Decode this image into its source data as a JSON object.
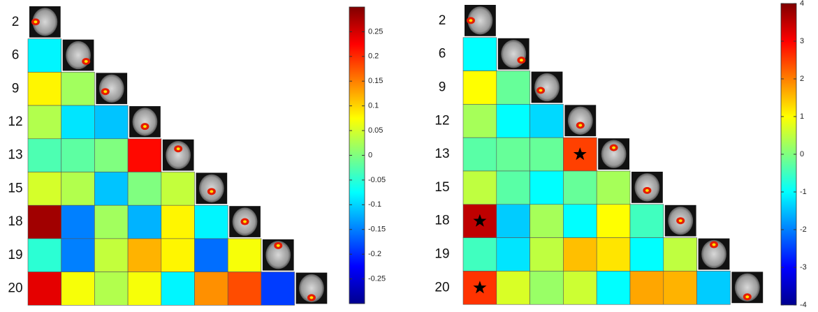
{
  "chart_data": [
    {
      "type": "heatmap",
      "labels": [
        "2",
        "6",
        "9",
        "12",
        "13",
        "15",
        "18",
        "19",
        "20"
      ],
      "values": [
        [],
        [
          -0.08
        ],
        [
          0.08,
          0.02
        ],
        [
          0.03,
          -0.09,
          -0.11
        ],
        [
          -0.03,
          -0.02,
          0.0,
          0.22
        ],
        [
          0.05,
          0.03,
          -0.11,
          0.0,
          0.04
        ],
        [
          0.28,
          -0.15,
          0.02,
          -0.12,
          0.08,
          -0.08
        ],
        [
          -0.05,
          -0.15,
          0.04,
          0.12,
          0.08,
          -0.16,
          0.07
        ],
        [
          0.24,
          0.07,
          0.03,
          0.07,
          -0.08,
          0.14,
          0.18,
          -0.19
        ]
      ],
      "zlim": [
        -0.3,
        0.3
      ],
      "zticks": [
        0.25,
        0.2,
        0.15,
        0.1,
        0.05,
        0,
        -0.05,
        -0.1,
        -0.15,
        -0.2,
        -0.25
      ],
      "colormap": "jet",
      "stars": []
    },
    {
      "type": "heatmap",
      "labels": [
        "2",
        "6",
        "9",
        "12",
        "13",
        "15",
        "18",
        "19",
        "20"
      ],
      "values": [
        [],
        [
          -1.0
        ],
        [
          1.0,
          -0.2
        ],
        [
          0.3,
          -1.0,
          -1.3
        ],
        [
          -0.3,
          -0.2,
          -0.2,
          2.5
        ],
        [
          0.5,
          -0.3,
          -1.0,
          -0.2,
          0.3
        ],
        [
          3.5,
          -1.4,
          0.3,
          -1.0,
          1.0,
          -0.5
        ],
        [
          -0.5,
          -1.2,
          0.5,
          1.5,
          1.2,
          -1.0,
          0.5
        ],
        [
          2.6,
          0.7,
          0.2,
          0.6,
          -1.0,
          1.7,
          1.6,
          -1.4
        ]
      ],
      "zlim": [
        -4,
        4
      ],
      "zticks": [
        4,
        3,
        2,
        1,
        0,
        -1,
        -2,
        -3,
        -4
      ],
      "colormap": "jet",
      "stars": [
        [
          4,
          3
        ],
        [
          6,
          0
        ],
        [
          8,
          0
        ]
      ]
    }
  ]
}
